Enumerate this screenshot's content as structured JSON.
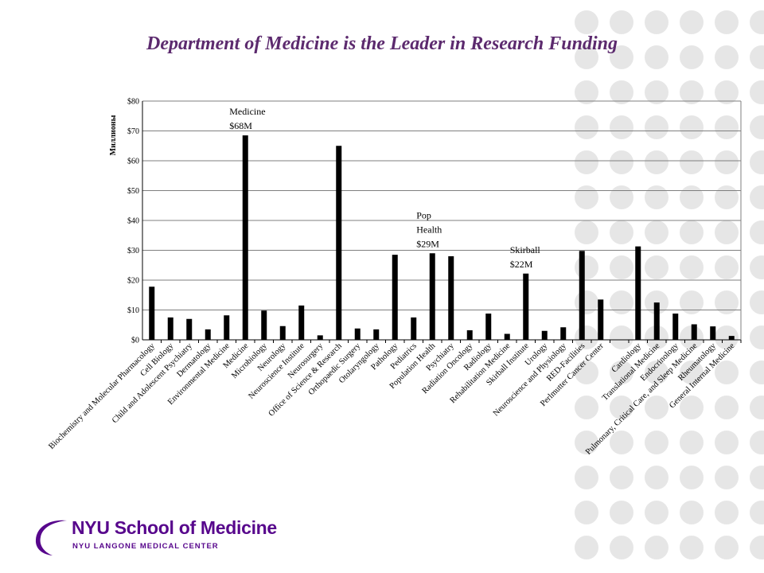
{
  "slide": {
    "title": "Department of Medicine is the Leader in Research Funding",
    "decor_color": "#e6e6e6",
    "title_color": "#5c2a6e"
  },
  "logo": {
    "main": "NYU School of Medicine",
    "sub": "NYU LANGONE MEDICAL CENTER",
    "color": "#57068c"
  },
  "chart_data": {
    "type": "bar",
    "ylabel": "Миллионы",
    "ylim": [
      0,
      80
    ],
    "yticks": [
      0,
      10,
      20,
      30,
      40,
      50,
      60,
      70,
      80
    ],
    "ytick_labels": [
      "$0",
      "$10",
      "$20",
      "$30",
      "$40",
      "$50",
      "$60",
      "$70",
      "$80"
    ],
    "grid": true,
    "bar_color": "#000000",
    "categories": [
      "Biochemistry and Molecular Pharmacology",
      "Cell Biology",
      "Child and Adolescent Psychiatry",
      "Dermatology",
      "Environmental Medicine",
      "Medicine",
      "Microbiology",
      "Neurology",
      "Neuroscience Institute",
      "Neurosurgery",
      "Office of Science & Research",
      "Orthopaedic Surgery",
      "Otolaryngology",
      "Pathology",
      "Pediatrics",
      "Population Health",
      "Psychiatry",
      "Radiation Oncology",
      "Radiology",
      "Rehabilitation Medicine",
      "Skirball Institute",
      "Urology",
      "Neuroscience and Physiology",
      "RED-Facilities",
      "Perlmutter Cancer Center",
      "",
      "Cardiology",
      "Translational Medicine",
      "Endocrinology",
      "Pulmonary, Critical Care, and Sleep Medicine",
      "Rheumatology",
      "General Internal Medicine"
    ],
    "values": [
      17.8,
      7.5,
      7.0,
      3.5,
      8.2,
      68.5,
      9.8,
      4.6,
      11.5,
      1.5,
      65.0,
      3.8,
      3.5,
      28.5,
      7.5,
      29.0,
      28.0,
      3.2,
      8.8,
      2.0,
      22.2,
      3.0,
      4.2,
      29.8,
      13.5,
      0,
      31.3,
      12.5,
      8.8,
      5.2,
      4.5,
      1.3
    ],
    "annotations": [
      {
        "lines": [
          "Medicine",
          "$68M"
        ],
        "category": 5
      },
      {
        "lines": [
          "Pop",
          "Health",
          "$29M"
        ],
        "category": 15
      },
      {
        "lines": [
          "Skirball",
          "$22M"
        ],
        "category": 20
      }
    ]
  }
}
